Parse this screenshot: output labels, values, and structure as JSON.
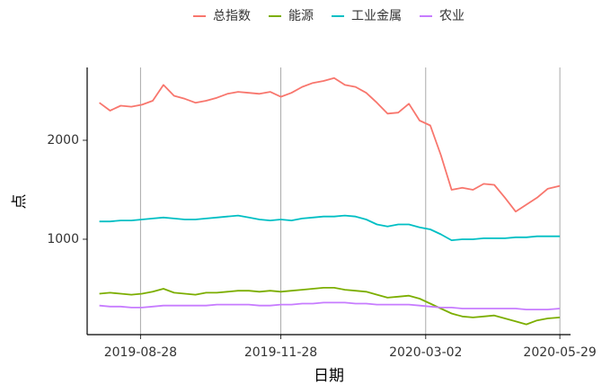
{
  "chart_data": {
    "type": "line",
    "x": [
      "2019-08-01",
      "2019-08-08",
      "2019-08-15",
      "2019-08-22",
      "2019-08-29",
      "2019-09-05",
      "2019-09-12",
      "2019-09-19",
      "2019-09-26",
      "2019-10-03",
      "2019-10-10",
      "2019-10-17",
      "2019-10-24",
      "2019-10-31",
      "2019-11-07",
      "2019-11-14",
      "2019-11-21",
      "2019-11-28",
      "2019-12-05",
      "2019-12-12",
      "2019-12-19",
      "2019-12-26",
      "2020-01-02",
      "2020-01-09",
      "2020-01-16",
      "2020-01-23",
      "2020-01-30",
      "2020-02-06",
      "2020-02-13",
      "2020-02-20",
      "2020-02-27",
      "2020-03-05",
      "2020-03-12",
      "2020-03-19",
      "2020-03-26",
      "2020-04-02",
      "2020-04-09",
      "2020-04-16",
      "2020-04-23",
      "2020-04-30",
      "2020-05-07",
      "2020-05-14",
      "2020-05-21",
      "2020-05-29"
    ],
    "series": [
      {
        "name": "总指数",
        "color": "#f8766d",
        "values": [
          2380,
          2300,
          2350,
          2340,
          2360,
          2400,
          2560,
          2450,
          2420,
          2380,
          2400,
          2430,
          2470,
          2490,
          2480,
          2470,
          2490,
          2440,
          2480,
          2540,
          2580,
          2600,
          2630,
          2560,
          2540,
          2480,
          2380,
          2270,
          2280,
          2370,
          2200,
          2150,
          1850,
          1500,
          1520,
          1500,
          1560,
          1550,
          1420,
          1280,
          1350,
          1420,
          1510,
          1540
        ]
      },
      {
        "name": "能源",
        "color": "#7cae00",
        "values": [
          450,
          460,
          450,
          440,
          450,
          470,
          500,
          460,
          450,
          440,
          460,
          460,
          470,
          480,
          480,
          470,
          480,
          470,
          480,
          490,
          500,
          510,
          510,
          490,
          480,
          470,
          440,
          410,
          420,
          430,
          400,
          350,
          300,
          250,
          220,
          210,
          220,
          230,
          200,
          170,
          140,
          180,
          200,
          210
        ]
      },
      {
        "name": "工业金属",
        "color": "#00bfc4",
        "values": [
          1180,
          1180,
          1190,
          1190,
          1200,
          1210,
          1220,
          1210,
          1200,
          1200,
          1210,
          1220,
          1230,
          1240,
          1220,
          1200,
          1190,
          1200,
          1190,
          1210,
          1220,
          1230,
          1230,
          1240,
          1230,
          1200,
          1150,
          1130,
          1150,
          1150,
          1120,
          1100,
          1050,
          990,
          1000,
          1000,
          1010,
          1010,
          1010,
          1020,
          1020,
          1030,
          1030,
          1030
        ]
      },
      {
        "name": "农业",
        "color": "#c77cff",
        "values": [
          330,
          320,
          320,
          310,
          310,
          320,
          330,
          330,
          330,
          330,
          330,
          340,
          340,
          340,
          340,
          330,
          330,
          340,
          340,
          350,
          350,
          360,
          360,
          360,
          350,
          350,
          340,
          340,
          340,
          340,
          330,
          320,
          310,
          310,
          300,
          300,
          300,
          300,
          300,
          300,
          290,
          290,
          290,
          300
        ]
      }
    ],
    "xlabel": "日期",
    "ylabel": "点",
    "xlim": [
      "2019-07-24",
      "2020-06-05"
    ],
    "xticks": [
      "2019-08-28",
      "2019-11-28",
      "2020-03-02",
      "2020-05-29"
    ],
    "ylim": [
      36,
      2736
    ],
    "yticks": [
      1000,
      2000
    ],
    "grid": "x",
    "legend": "top"
  }
}
